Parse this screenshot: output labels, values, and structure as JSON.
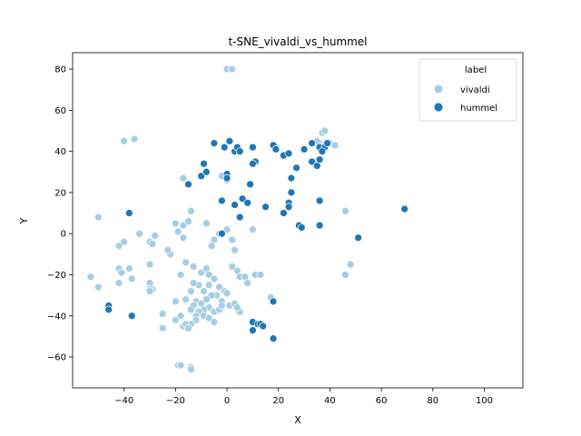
{
  "chart_data": {
    "type": "scatter",
    "title": "t-SNE_vivaldi_vs_hummel",
    "xlabel": "X",
    "ylabel": "Y",
    "xlim": [
      -60,
      115
    ],
    "ylim": [
      -75,
      88
    ],
    "xticks": [
      -40,
      -20,
      0,
      20,
      40,
      60,
      80,
      100
    ],
    "yticks": [
      -60,
      -40,
      -20,
      0,
      20,
      40,
      60,
      80
    ],
    "grid": false,
    "legend": {
      "title": "label",
      "placement": "top-right"
    },
    "series": [
      {
        "name": "vivaldi",
        "color": "#a6cee3",
        "points": [
          [
            0,
            80
          ],
          [
            2,
            80
          ],
          [
            -40,
            45
          ],
          [
            -36,
            46
          ],
          [
            37,
            49
          ],
          [
            38,
            50
          ],
          [
            36,
            44
          ],
          [
            38,
            43
          ],
          [
            40,
            44
          ],
          [
            42,
            43
          ],
          [
            35,
            45
          ],
          [
            37,
            42
          ],
          [
            -50,
            8
          ],
          [
            -34,
            0
          ],
          [
            -40,
            -4
          ],
          [
            -42,
            -6
          ],
          [
            -30,
            -4
          ],
          [
            -29,
            -5
          ],
          [
            -28,
            -1
          ],
          [
            -22,
            -10
          ],
          [
            -23,
            -8
          ],
          [
            -20,
            5
          ],
          [
            -17,
            4
          ],
          [
            -15,
            6
          ],
          [
            -14,
            11
          ],
          [
            -17,
            27
          ],
          [
            -19,
            1
          ],
          [
            -17,
            -2
          ],
          [
            -8,
            5
          ],
          [
            -5,
            -3
          ],
          [
            -6,
            -6
          ],
          [
            -3,
            0
          ],
          [
            0,
            2
          ],
          [
            2,
            -3
          ],
          [
            3,
            -8
          ],
          [
            10,
            2
          ],
          [
            -2,
            28
          ],
          [
            0,
            26
          ],
          [
            -53,
            -21
          ],
          [
            -50,
            -26
          ],
          [
            -42,
            -17
          ],
          [
            -41,
            -19
          ],
          [
            -38,
            -17
          ],
          [
            -37,
            -22
          ],
          [
            -42,
            -24
          ],
          [
            -30,
            -15
          ],
          [
            -30,
            -24
          ],
          [
            -29,
            -27
          ],
          [
            -30,
            -27
          ],
          [
            -18,
            -20
          ],
          [
            -16,
            -14
          ],
          [
            -13,
            -16
          ],
          [
            -10,
            -19
          ],
          [
            -11,
            -25
          ],
          [
            -13,
            -24
          ],
          [
            -8,
            -17
          ],
          [
            -7,
            -20
          ],
          [
            -5,
            -22
          ],
          [
            -7,
            -25
          ],
          [
            -9,
            -28
          ],
          [
            -3,
            -26
          ],
          [
            -4,
            -30
          ],
          [
            -1,
            -28
          ],
          [
            0,
            -29
          ],
          [
            -2,
            -33
          ],
          [
            -6,
            -30
          ],
          [
            -12,
            -33
          ],
          [
            -14,
            -28
          ],
          [
            -13,
            -35
          ],
          [
            -10,
            -34
          ],
          [
            -8,
            -32
          ],
          [
            -7,
            -36
          ],
          [
            -5,
            -38
          ],
          [
            -9,
            -37
          ],
          [
            -11,
            -38
          ],
          [
            -12,
            -40
          ],
          [
            -9,
            -40
          ],
          [
            -7,
            -41
          ],
          [
            -5,
            -43
          ],
          [
            -3,
            -37
          ],
          [
            -2,
            -35
          ],
          [
            1,
            -35
          ],
          [
            3,
            -34
          ],
          [
            5,
            -38
          ],
          [
            4,
            -36
          ],
          [
            2,
            -16
          ],
          [
            4,
            -18
          ],
          [
            5,
            -21
          ],
          [
            7,
            -21
          ],
          [
            8,
            -24
          ],
          [
            11,
            -20
          ],
          [
            13,
            -20
          ],
          [
            -16,
            -32
          ],
          [
            -14,
            -37
          ],
          [
            -12,
            -42
          ],
          [
            -14,
            -44
          ],
          [
            -17,
            -45
          ],
          [
            -20,
            -42
          ],
          [
            -18,
            -40
          ],
          [
            -25,
            -39
          ],
          [
            -25,
            -46
          ],
          [
            -30,
            -28
          ],
          [
            -20,
            -33
          ],
          [
            -16,
            -44
          ],
          [
            -15,
            -46
          ],
          [
            -19,
            -64
          ],
          [
            -18,
            -64
          ],
          [
            -14,
            -65
          ],
          [
            -14,
            -66
          ],
          [
            46,
            11
          ],
          [
            46,
            -20
          ],
          [
            48,
            -15
          ],
          [
            18,
            -33
          ],
          [
            17,
            -31
          ]
        ]
      },
      {
        "name": "hummel",
        "color": "#1f78b4",
        "points": [
          [
            -38,
            10
          ],
          [
            -5,
            44
          ],
          [
            -1,
            42
          ],
          [
            1,
            45
          ],
          [
            3,
            40
          ],
          [
            4,
            42
          ],
          [
            5,
            40
          ],
          [
            10,
            42
          ],
          [
            11,
            35
          ],
          [
            10,
            34
          ],
          [
            -10,
            28
          ],
          [
            -9,
            34
          ],
          [
            -8,
            30
          ],
          [
            -15,
            24
          ],
          [
            -2,
            16
          ],
          [
            0,
            29
          ],
          [
            0,
            27
          ],
          [
            3,
            14
          ],
          [
            5,
            8
          ],
          [
            6,
            17
          ],
          [
            8,
            15
          ],
          [
            9,
            24
          ],
          [
            15,
            13
          ],
          [
            18,
            43
          ],
          [
            19,
            41
          ],
          [
            22,
            38
          ],
          [
            24,
            39
          ],
          [
            27,
            32
          ],
          [
            30,
            41
          ],
          [
            33,
            44
          ],
          [
            33,
            35
          ],
          [
            35,
            33
          ],
          [
            36,
            36
          ],
          [
            36,
            42
          ],
          [
            38,
            42
          ],
          [
            39,
            44
          ],
          [
            37,
            40
          ],
          [
            22,
            10
          ],
          [
            24,
            15
          ],
          [
            25,
            20
          ],
          [
            25,
            27
          ],
          [
            24,
            13
          ],
          [
            28,
            4
          ],
          [
            29,
            3
          ],
          [
            36,
            16
          ],
          [
            36,
            4
          ],
          [
            -2,
            0
          ],
          [
            51,
            -2
          ],
          [
            69,
            12
          ],
          [
            -46,
            -35
          ],
          [
            -46,
            -37
          ],
          [
            -37,
            -40
          ],
          [
            10,
            -43
          ],
          [
            12,
            -44
          ],
          [
            13,
            -44
          ],
          [
            14,
            -45
          ],
          [
            10,
            -47
          ],
          [
            18,
            -33
          ],
          [
            18,
            -51
          ]
        ]
      }
    ]
  }
}
